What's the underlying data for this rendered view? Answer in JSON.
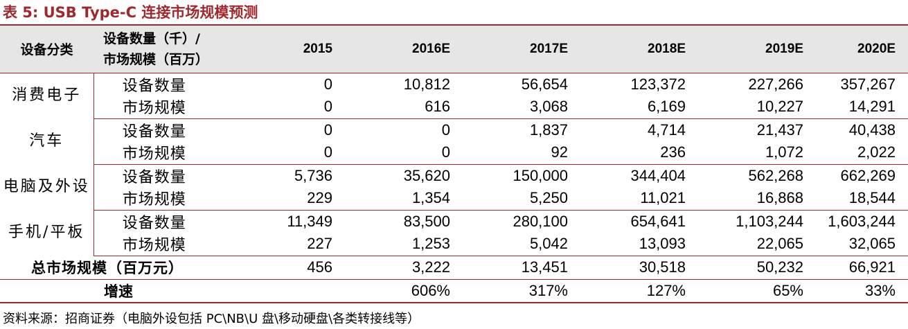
{
  "title": "表 5:  USB Type-C 连接市场规模预测",
  "header": {
    "category": "设备分类",
    "metric_line1": "设备数量（千）/",
    "metric_line2": "市场规模（百万）",
    "years": [
      "2015",
      "2016E",
      "2017E",
      "2018E",
      "2019E",
      "2020E"
    ]
  },
  "groups": [
    {
      "category": "消费电子",
      "rows": [
        {
          "metric": "设备数量",
          "values": [
            "0",
            "10,812",
            "56,654",
            "123,372",
            "227,266",
            "357,267"
          ]
        },
        {
          "metric": "市场规模",
          "values": [
            "0",
            "616",
            "3,068",
            "6,169",
            "10,227",
            "14,291"
          ]
        }
      ]
    },
    {
      "category": "汽车",
      "rows": [
        {
          "metric": "设备数量",
          "values": [
            "0",
            "0",
            "1,837",
            "4,714",
            "21,437",
            "40,438"
          ]
        },
        {
          "metric": "市场规模",
          "values": [
            "0",
            "0",
            "92",
            "236",
            "1,072",
            "2,022"
          ]
        }
      ]
    },
    {
      "category": "电脑及外设",
      "rows": [
        {
          "metric": "设备数量",
          "values": [
            "5,736",
            "35,620",
            "150,000",
            "344,404",
            "562,268",
            "662,269"
          ]
        },
        {
          "metric": "市场规模",
          "values": [
            "229",
            "1,354",
            "5,250",
            "11,021",
            "16,868",
            "18,544"
          ]
        }
      ]
    },
    {
      "category": "手机/平板",
      "rows": [
        {
          "metric": "设备数量",
          "values": [
            "11,349",
            "83,500",
            "280,100",
            "654,641",
            "1,103,244",
            "1,603,244"
          ]
        },
        {
          "metric": "市场规模",
          "values": [
            "227",
            "1,253",
            "5,042",
            "13,093",
            "22,065",
            "32,065"
          ]
        }
      ]
    }
  ],
  "total": {
    "label": "总市场规模（百万元）",
    "values": [
      "456",
      "3,222",
      "13,451",
      "30,518",
      "50,232",
      "66,921"
    ]
  },
  "growth": {
    "label": "增速",
    "values": [
      "",
      "606%",
      "317%",
      "127%",
      "65%",
      "33%"
    ]
  },
  "source": "资料来源：招商证券（电脑外设包括 PC\\NB\\U 盘\\移动硬盘\\各类转接线等）",
  "colors": {
    "accent": "#a0282c",
    "header_bg": "#e6e6e6"
  }
}
